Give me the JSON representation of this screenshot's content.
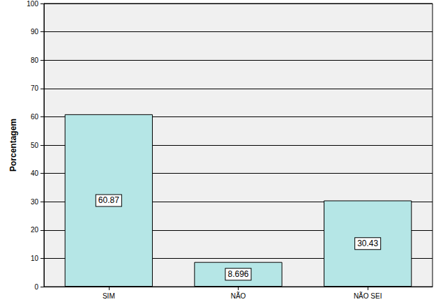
{
  "chart_data": {
    "type": "bar",
    "y_label": "Porcentagem",
    "categories": [
      "SIM",
      "NÃO",
      "NÃO SEI"
    ],
    "values": [
      60.87,
      8.696,
      30.43
    ],
    "color": "#b5e6e6",
    "ylim": [
      0,
      100
    ],
    "yticks": [
      0,
      10,
      20,
      30,
      40,
      50,
      60,
      70,
      80,
      90,
      100
    ],
    "grid": true,
    "data_labels": true
  }
}
